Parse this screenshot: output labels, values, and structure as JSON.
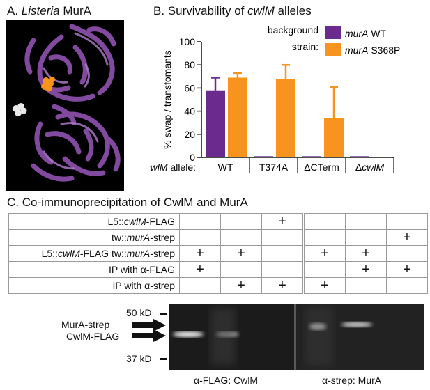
{
  "panelA": {
    "letter": "A.",
    "title_italic": "Listeria",
    "title_rest": " MurA"
  },
  "panelB": {
    "title_prefix": "B. Survivability of ",
    "title_italic": "cwlM",
    "title_suffix": " alleles"
  },
  "chart_data": {
    "type": "bar",
    "ylabel": "% swap / transfomants",
    "ylim": [
      0,
      100
    ],
    "yticks": [
      0,
      20,
      40,
      60,
      80,
      100
    ],
    "categories": [
      "WT",
      "T374A",
      "ΔCTerm",
      "ΔcwlM"
    ],
    "xaxis_prefix": "allele:",
    "xaxis_prefix_italic": "cwlM",
    "legend_title_line1": "background",
    "legend_title_line2": "strain:",
    "series": [
      {
        "name": "murA WT",
        "name_italic": "murA",
        "name_rest": " WT",
        "color": "#6a2a8e",
        "values": [
          58,
          1,
          1,
          1
        ],
        "errors": [
          11,
          0,
          0,
          0
        ]
      },
      {
        "name": "murA S368P",
        "name_italic": "murA",
        "name_rest": " S368P",
        "color": "#f7941d",
        "values": [
          69,
          68,
          34,
          0
        ],
        "errors": [
          4,
          12,
          27,
          0
        ]
      }
    ]
  },
  "panelC": {
    "title": "C. Co-immunoprecipitation of CwlM and MurA",
    "rows": [
      {
        "label_parts": [
          [
            "L5::",
            false
          ],
          [
            "cwlM",
            true
          ],
          [
            "-FLAG",
            false
          ]
        ],
        "marks": [
          "",
          "",
          "+",
          "",
          "",
          ""
        ]
      },
      {
        "label_parts": [
          [
            "tw::",
            false
          ],
          [
            "murA",
            true
          ],
          [
            "-strep",
            false
          ]
        ],
        "marks": [
          "",
          "",
          "",
          "",
          "",
          "+"
        ]
      },
      {
        "label_parts": [
          [
            "L5::",
            false
          ],
          [
            "cwlM",
            true
          ],
          [
            "-FLAG tw::",
            false
          ],
          [
            "murA",
            true
          ],
          [
            "-strep",
            false
          ]
        ],
        "marks": [
          "+",
          "+",
          "",
          "+",
          "+",
          ""
        ]
      },
      {
        "label_parts": [
          [
            "IP with α-FLAG",
            false
          ]
        ],
        "marks": [
          "+",
          "",
          "",
          "",
          "+",
          "+"
        ]
      },
      {
        "label_parts": [
          [
            "IP with α-strep",
            false
          ]
        ],
        "marks": [
          "",
          "+",
          "+",
          "+",
          "",
          ""
        ]
      }
    ],
    "marker_50": "50 kD",
    "marker_37": "37 kD",
    "band_label_murA": "MurA-strep",
    "band_label_cwlM": "CwlM-FLAG",
    "blot_left_caption": "α-FLAG: CwlM",
    "blot_right_caption": "α-strep: MurA"
  }
}
